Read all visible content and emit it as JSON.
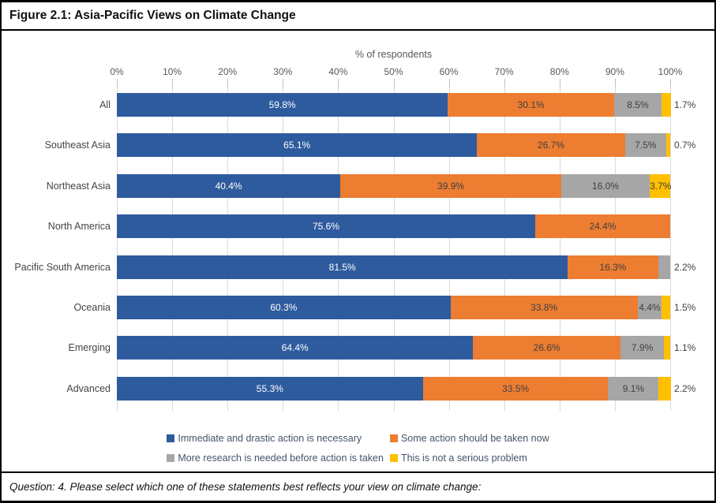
{
  "figure": {
    "title": "Figure 2.1: Asia-Pacific Views on Climate Change",
    "question": "Question: 4. Please select which one of these statements best reflects your view on climate change:"
  },
  "chart_data": {
    "type": "bar",
    "orientation": "horizontal",
    "stacked": true,
    "title": "Figure 2.1: Asia-Pacific Views on Climate Change",
    "axis_title": "% of respondents",
    "xlim": [
      0,
      100
    ],
    "x_tick_labels": [
      "0%",
      "10%",
      "20%",
      "30%",
      "40%",
      "50%",
      "60%",
      "70%",
      "80%",
      "90%",
      "100%"
    ],
    "grid": true,
    "legend_position": "bottom",
    "data_label_format": "0.0%",
    "small_value_outside_threshold": 3,
    "categories": [
      "All",
      "Southeast Asia",
      "Northeast Asia",
      "North America",
      "Pacific South America",
      "Oceania",
      "Emerging",
      "Advanced"
    ],
    "series": [
      {
        "name": "Immediate and drastic action is necessary",
        "color": "#2E5B9E",
        "label_color": "#FFFFFF",
        "values": [
          59.8,
          65.1,
          40.4,
          75.6,
          81.5,
          60.3,
          64.4,
          55.3
        ]
      },
      {
        "name": "Some action should be taken now",
        "color": "#ED7D31",
        "label_color": "#404040",
        "values": [
          30.1,
          26.7,
          39.9,
          24.4,
          16.3,
          33.8,
          26.6,
          33.5
        ]
      },
      {
        "name": "More research is needed before action is taken",
        "color": "#A6A6A6",
        "label_color": "#404040",
        "values": [
          8.5,
          7.5,
          16.0,
          0,
          2.2,
          4.4,
          7.9,
          9.1
        ]
      },
      {
        "name": "This is not a serious problem",
        "color": "#FFC000",
        "label_color": "#404040",
        "values": [
          1.7,
          0.7,
          3.7,
          0,
          0,
          1.5,
          1.1,
          2.2
        ]
      }
    ],
    "colors": {
      "gridline": "#D9D9D9",
      "tick": "#BFBFBF",
      "axis_text": "#595959",
      "legend_text": "#44546A",
      "border": "#000000"
    }
  }
}
